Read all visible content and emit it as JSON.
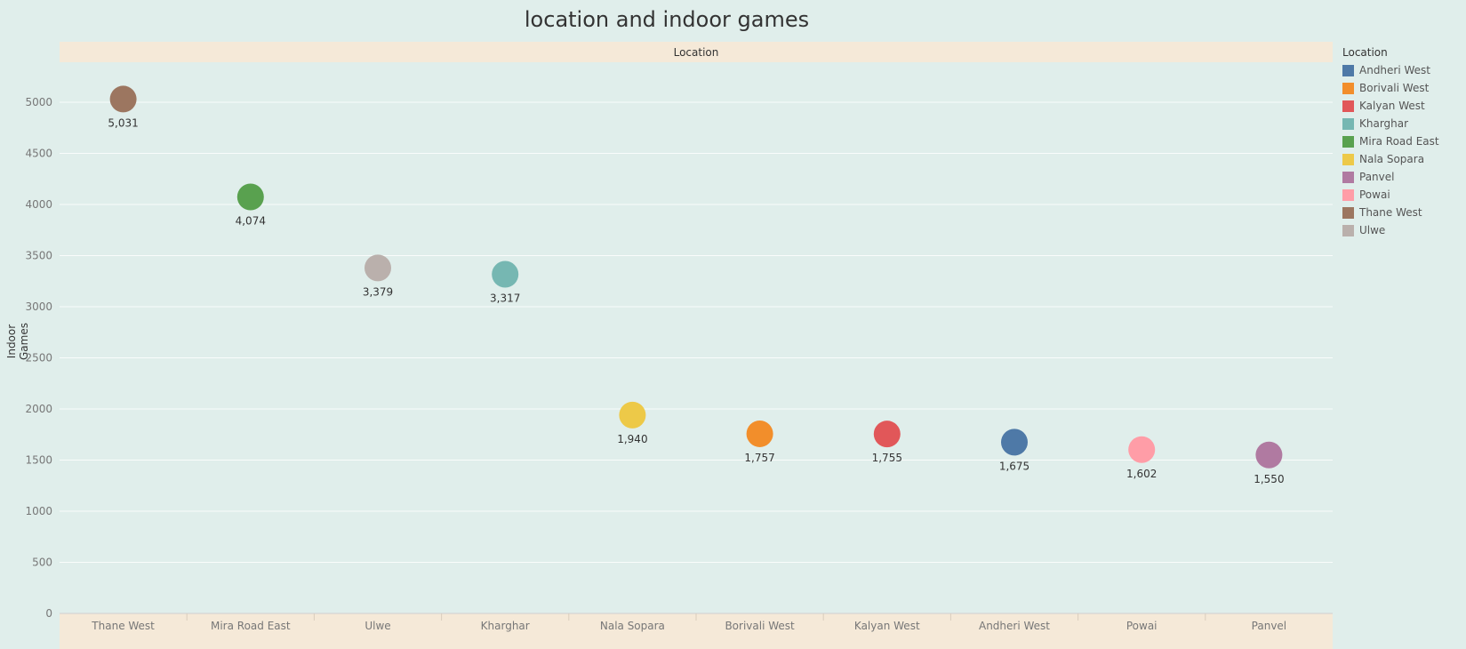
{
  "chart_data": {
    "type": "scatter",
    "title": "location and indoor games",
    "column_header": "Location",
    "ylabel": "Indoor Games",
    "ylim": [
      0,
      5500
    ],
    "yticks": [
      0,
      500,
      1000,
      1500,
      2000,
      2500,
      3000,
      3500,
      4000,
      4500,
      5000
    ],
    "points": [
      {
        "location": "Thane West",
        "value": 5031,
        "label": "5,031",
        "color": "#9c7660"
      },
      {
        "location": "Mira Road East",
        "value": 4074,
        "label": "4,074",
        "color": "#59a14f"
      },
      {
        "location": "Ulwe",
        "value": 3379,
        "label": "3,379",
        "color": "#bab0ac"
      },
      {
        "location": "Kharghar",
        "value": 3317,
        "label": "3,317",
        "color": "#76b7b2"
      },
      {
        "location": "Nala Sopara",
        "value": 1940,
        "label": "1,940",
        "color": "#edc948"
      },
      {
        "location": "Borivali West",
        "value": 1757,
        "label": "1,757",
        "color": "#f28e2b"
      },
      {
        "location": "Kalyan West",
        "value": 1755,
        "label": "1,755",
        "color": "#e15759"
      },
      {
        "location": "Andheri West",
        "value": 1675,
        "label": "1,675",
        "color": "#4e79a7"
      },
      {
        "location": "Powai",
        "value": 1602,
        "label": "1,602",
        "color": "#ff9da7"
      },
      {
        "location": "Panvel",
        "value": 1550,
        "label": "1,550",
        "color": "#b07aa1"
      }
    ],
    "legend": {
      "title": "Location",
      "placement": "right",
      "items": [
        {
          "label": "Andheri West",
          "color": "#4e79a7"
        },
        {
          "label": "Borivali West",
          "color": "#f28e2b"
        },
        {
          "label": "Kalyan West",
          "color": "#e15759"
        },
        {
          "label": "Kharghar",
          "color": "#76b7b2"
        },
        {
          "label": "Mira Road East",
          "color": "#59a14f"
        },
        {
          "label": "Nala Sopara",
          "color": "#edc948"
        },
        {
          "label": "Panvel",
          "color": "#b07aa1"
        },
        {
          "label": "Powai",
          "color": "#ff9da7"
        },
        {
          "label": "Thane West",
          "color": "#9c7660"
        },
        {
          "label": "Ulwe",
          "color": "#bab0ac"
        }
      ]
    }
  }
}
